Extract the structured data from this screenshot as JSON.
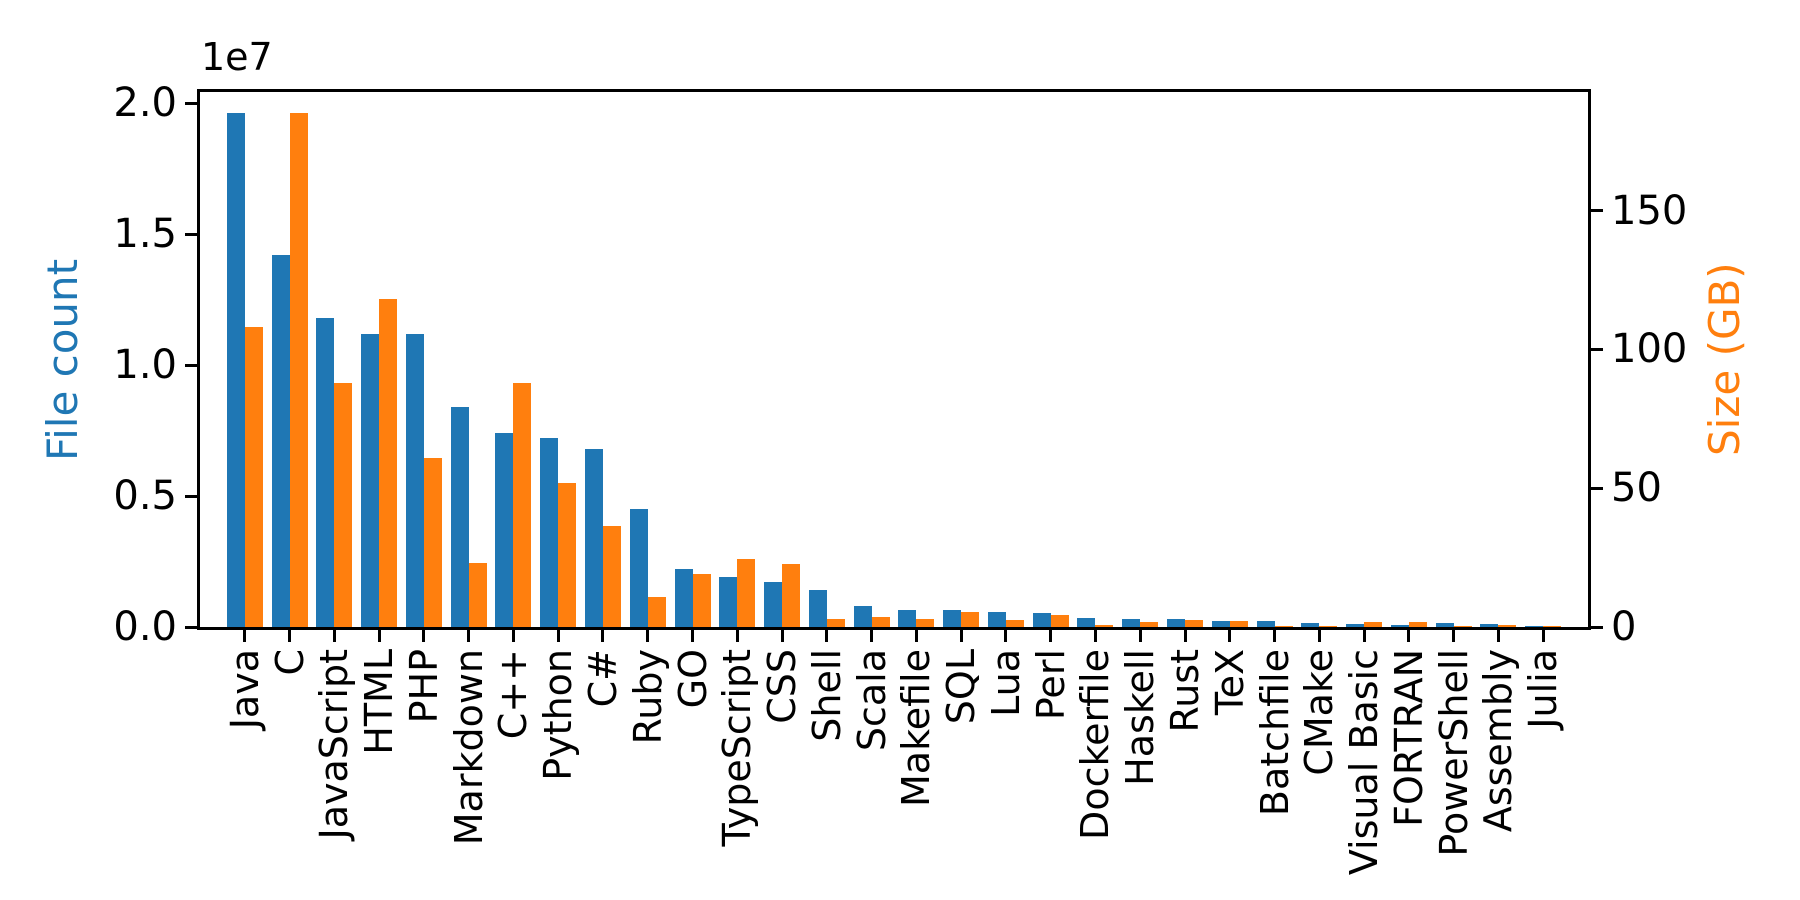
{
  "chart_data": {
    "type": "bar",
    "title": "",
    "offset_text": "1e7",
    "ylabel_left": "File count",
    "ylabel_right": "Size (GB)",
    "ylabel_left_color": "#1f77b4",
    "ylabel_right_color": "#ff7f0e",
    "grid": false,
    "legend": "none",
    "x_tick_rotation": 90,
    "categories": [
      "Java",
      "C",
      "JavaScript",
      "HTML",
      "PHP",
      "Markdown",
      "C++",
      "Python",
      "C#",
      "Ruby",
      "GO",
      "TypeScript",
      "CSS",
      "Shell",
      "Scala",
      "Makefile",
      "SQL",
      "Lua",
      "Perl",
      "Dockerfile",
      "Haskell",
      "Rust",
      "TeX",
      "Batchfile",
      "CMake",
      "Visual Basic",
      "FORTRAN",
      "PowerShell",
      "Assembly",
      "Julia"
    ],
    "series": [
      {
        "name": "File count",
        "axis": "left",
        "color": "#1f77b4",
        "values": [
          19600000,
          14200000,
          11800000,
          11200000,
          11200000,
          8400000,
          7400000,
          7200000,
          6800000,
          4500000,
          2200000,
          1900000,
          1700000,
          1400000,
          800000,
          650000,
          660000,
          580000,
          520000,
          360000,
          320000,
          310000,
          230000,
          230000,
          150000,
          120000,
          90000,
          140000,
          110000,
          40000
        ]
      },
      {
        "name": "Size (GB)",
        "axis": "right",
        "color": "#ff7f0e",
        "values": [
          108,
          185,
          88,
          118,
          61,
          23,
          88,
          52,
          36.5,
          10.7,
          19.2,
          24.4,
          22.8,
          2.9,
          3.7,
          2.9,
          5.4,
          2.5,
          4.4,
          0.6,
          1.7,
          2.5,
          2.0,
          0.3,
          0.5,
          1.7,
          1.9,
          0.3,
          0.8,
          0.2
        ]
      }
    ],
    "left_axis": {
      "tick_labels": [
        "0.0",
        "0.5",
        "1.0",
        "1.5",
        "2.0"
      ],
      "tick_values": [
        0,
        5000000,
        10000000,
        15000000,
        20000000
      ],
      "scale_note": "1e7",
      "ylim": [
        0,
        20420000
      ]
    },
    "right_axis": {
      "tick_labels": [
        "0",
        "50",
        "100",
        "150"
      ],
      "tick_values": [
        0,
        50,
        100,
        150
      ],
      "ylim": [
        0,
        192.7
      ]
    }
  }
}
